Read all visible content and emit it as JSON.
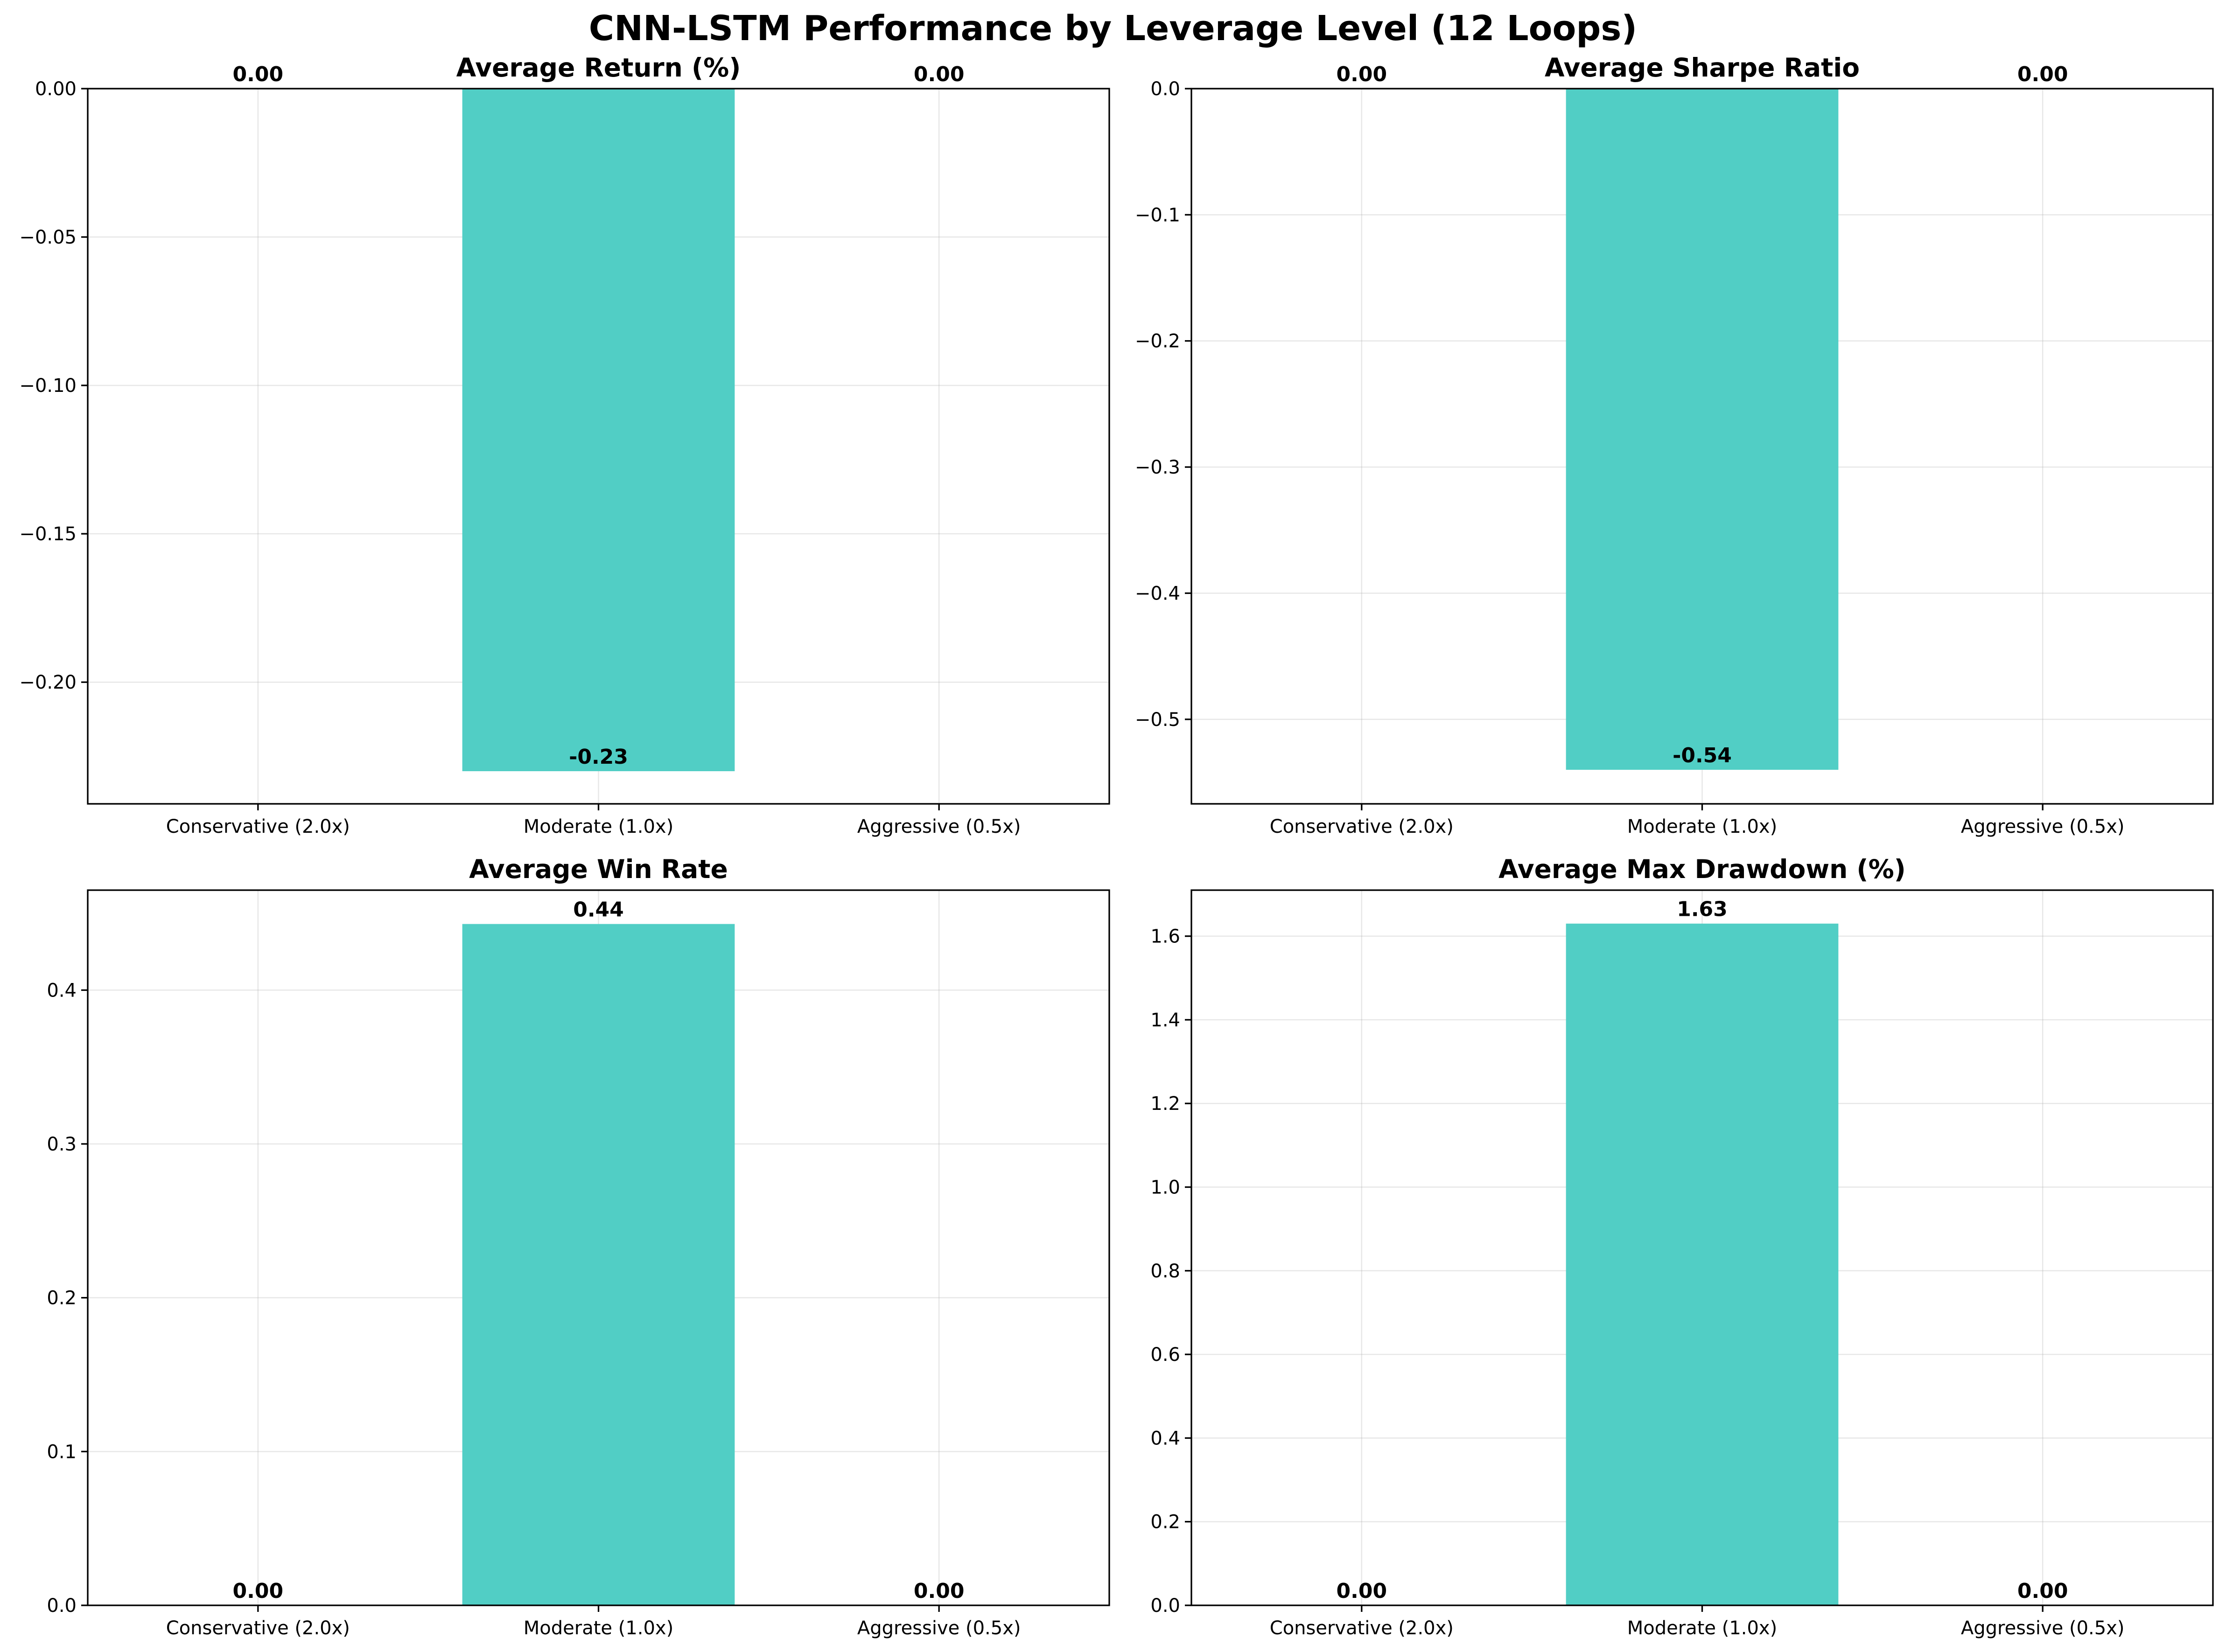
{
  "figure_title": "CNN-LSTM Performance by Leverage Level (12 Loops)",
  "colors": {
    "bar": "#4ECDC4",
    "grid": "#b0b0b0",
    "axis": "#000000"
  },
  "chart_data": [
    {
      "type": "bar",
      "title": "Average Return (%)",
      "categories": [
        "Conservative (2.0x)",
        "Moderate (1.0x)",
        "Aggressive (0.5x)"
      ],
      "values": [
        0.0,
        -0.23,
        0.0
      ],
      "value_labels": [
        "0.00",
        "-0.23",
        "0.00"
      ],
      "ylim": [
        -0.241,
        0.0
      ],
      "yticks": [
        0.0,
        -0.05,
        -0.1,
        -0.15,
        -0.2
      ],
      "ytick_labels": [
        "0.00",
        "−0.05",
        "−0.10",
        "−0.15",
        "−0.20"
      ],
      "xlabel": "",
      "ylabel": "",
      "grid": true
    },
    {
      "type": "bar",
      "title": "Average Sharpe Ratio",
      "categories": [
        "Conservative (2.0x)",
        "Moderate (1.0x)",
        "Aggressive (0.5x)"
      ],
      "values": [
        0.0,
        -0.54,
        0.0
      ],
      "value_labels": [
        "0.00",
        "-0.54",
        "0.00"
      ],
      "ylim": [
        -0.567,
        0.0
      ],
      "yticks": [
        0.0,
        -0.1,
        -0.2,
        -0.3,
        -0.4,
        -0.5
      ],
      "ytick_labels": [
        "0.0",
        "−0.1",
        "−0.2",
        "−0.3",
        "−0.4",
        "−0.5"
      ],
      "xlabel": "",
      "ylabel": "",
      "grid": true
    },
    {
      "type": "bar",
      "title": "Average Win Rate",
      "categories": [
        "Conservative (2.0x)",
        "Moderate (1.0x)",
        "Aggressive (0.5x)"
      ],
      "values": [
        0.0,
        0.443,
        0.0
      ],
      "value_labels": [
        "0.00",
        "0.44",
        "0.00"
      ],
      "ylim": [
        0.0,
        0.465
      ],
      "yticks": [
        0.0,
        0.1,
        0.2,
        0.3,
        0.4
      ],
      "ytick_labels": [
        "0.0",
        "0.1",
        "0.2",
        "0.3",
        "0.4"
      ],
      "xlabel": "",
      "ylabel": "",
      "grid": true
    },
    {
      "type": "bar",
      "title": "Average Max Drawdown (%)",
      "categories": [
        "Conservative (2.0x)",
        "Moderate (1.0x)",
        "Aggressive (0.5x)"
      ],
      "values": [
        0.0,
        1.63,
        0.0
      ],
      "value_labels": [
        "0.00",
        "1.63",
        "0.00"
      ],
      "ylim": [
        0.0,
        1.71
      ],
      "yticks": [
        0.0,
        0.2,
        0.4,
        0.6,
        0.8,
        1.0,
        1.2,
        1.4,
        1.6
      ],
      "ytick_labels": [
        "0.0",
        "0.2",
        "0.4",
        "0.6",
        "0.8",
        "1.0",
        "1.2",
        "1.4",
        "1.6"
      ],
      "xlabel": "",
      "ylabel": "",
      "grid": true
    }
  ]
}
